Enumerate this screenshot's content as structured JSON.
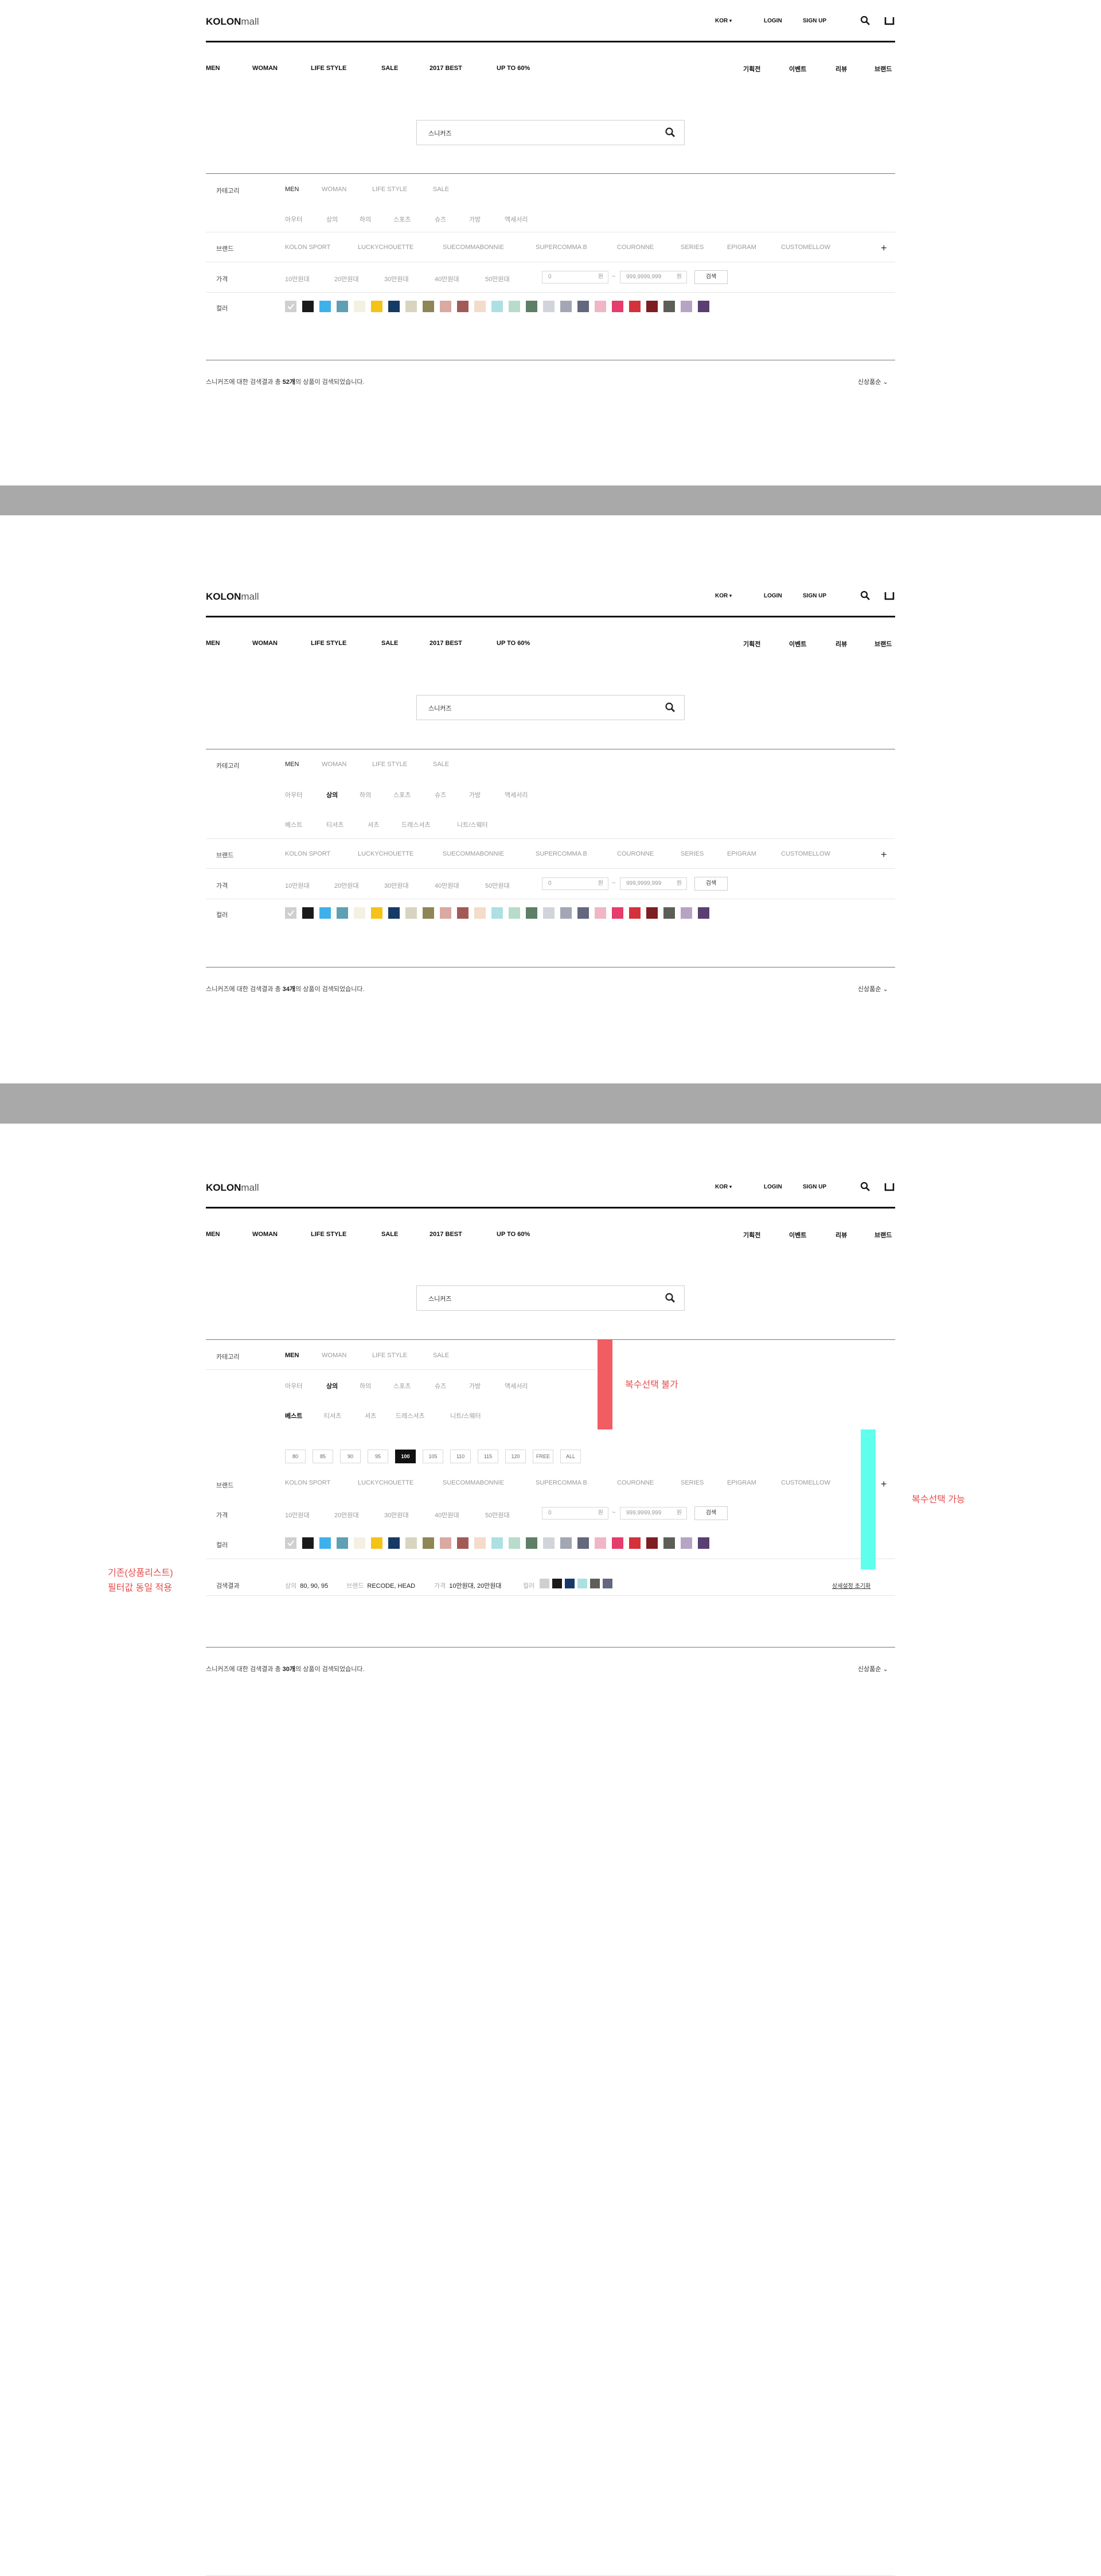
{
  "brand": {
    "bold": "KOLON",
    "light": "mall"
  },
  "util": {
    "lang": "KOR",
    "login": "LOGIN",
    "signup": "SIGN UP"
  },
  "gnb": [
    "MEN",
    "WOMAN",
    "LIFE STYLE",
    "SALE",
    "2017 BEST",
    "UP TO 60%"
  ],
  "rnb": [
    "기획전",
    "이벤트",
    "리뷰",
    "브랜드"
  ],
  "search": {
    "query": "스니커즈"
  },
  "labels": {
    "category": "카테고리",
    "brand": "브랜드",
    "price": "가격",
    "color": "컬러",
    "result": "검색결과"
  },
  "categories": [
    "MEN",
    "WOMAN",
    "LIFE STYLE",
    "SALE"
  ],
  "subcategories": [
    "아우터",
    "상의",
    "하의",
    "스포츠",
    "슈즈",
    "가방",
    "액세서리"
  ],
  "subsubcategories": [
    "베스트",
    "티셔츠",
    "셔츠",
    "드레스셔츠",
    "니트/스웨터"
  ],
  "brands": [
    "KOLON SPORT",
    "LUCKYCHOUETTE",
    "SUECOMMABONNIE",
    "SUPERCOMMA B",
    "COURONNE",
    "SERIES",
    "EPIGRAM",
    "CUSTOMELLOW"
  ],
  "prices": [
    "10만원대",
    "20만원대",
    "30만원대",
    "40만원대",
    "50만원대"
  ],
  "price_input": {
    "min": "0",
    "max": "999,9999,999",
    "unit": "원",
    "dash": "~",
    "button": "검색"
  },
  "sizes": [
    "80",
    "85",
    "90",
    "95",
    "100",
    "105",
    "110",
    "115",
    "120",
    "FREE",
    "ALL"
  ],
  "selected_size": "100",
  "colors": [
    "#cfcfcf",
    "#1a1a1a",
    "#3eb1ea",
    "#5e9fb4",
    "#f4f1e2",
    "#f5c218",
    "#163a66",
    "#d8d4c0",
    "#8e8654",
    "#d9a9a2",
    "#a35a56",
    "#f3dcc9",
    "#ade0e3",
    "#b8dccb",
    "#5e7f66",
    "#d2d4dc",
    "#a3a6b3",
    "#64687e",
    "#f0b6c6",
    "#e53d6c",
    "#d5313b",
    "#7e1e22",
    "#5e5e58",
    "#b7a4c4",
    "#5a3f72"
  ],
  "sort": "신상품순",
  "panels": [
    {
      "result_prefix": "스니커즈에 대한 검색결과 총 ",
      "count": "52개",
      "result_suffix": "의 상품이 검색되었습니다."
    },
    {
      "result_prefix": "스니커즈에 대한 검색결과 총 ",
      "count": "34개",
      "result_suffix": "의 상품이 검색되었습니다."
    },
    {
      "result_prefix": "스니커즈에 대한 검색결과 총 ",
      "count": "30개",
      "result_suffix": "의 상품이 검색되었습니다."
    }
  ],
  "filter_result": {
    "size_label": "상의",
    "size_values": "80, 90, 95",
    "brand_label": "브랜드",
    "brand_values": "RECODE, HEAD",
    "price_label": "가격",
    "price_values": "10만원대, 20만원대",
    "color_label": "컬러",
    "color_values": [
      "#cfcfcf",
      "#1a1a1a",
      "#163a66",
      "#ade0e3",
      "#5e5e58",
      "#64687e"
    ],
    "reset": "상세설정 초기화"
  },
  "annotations": {
    "single": "복수선택 불가",
    "multi": "복수선택 가능",
    "existing_1": "기존(상품리스트)",
    "existing_2": "필터값 동일 적용"
  }
}
